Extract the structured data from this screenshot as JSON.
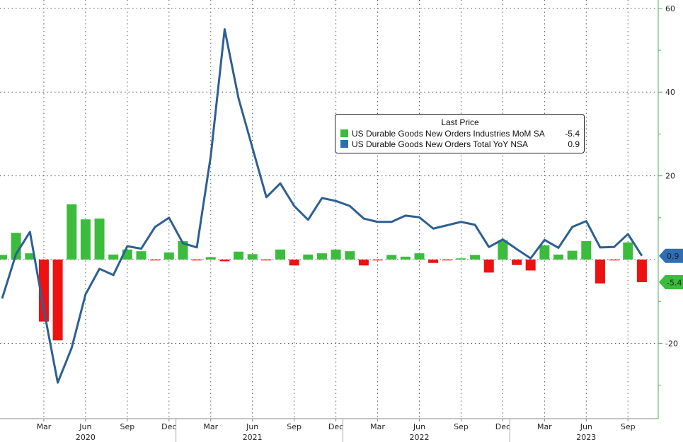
{
  "chart_data": {
    "type": "bar+line",
    "x": [
      "Dec 2019",
      "Jan 2020",
      "Feb 2020",
      "Mar 2020",
      "Apr 2020",
      "May 2020",
      "Jun 2020",
      "Jul 2020",
      "Aug 2020",
      "Sep 2020",
      "Oct 2020",
      "Nov 2020",
      "Dec 2020",
      "Jan 2021",
      "Feb 2021",
      "Mar 2021",
      "Apr 2021",
      "May 2021",
      "Jun 2021",
      "Jul 2021",
      "Aug 2021",
      "Sep 2021",
      "Oct 2021",
      "Nov 2021",
      "Dec 2021",
      "Jan 2022",
      "Feb 2022",
      "Mar 2022",
      "Apr 2022",
      "May 2022",
      "Jun 2022",
      "Jul 2022",
      "Aug 2022",
      "Sep 2022",
      "Oct 2022",
      "Nov 2022",
      "Dec 2022",
      "Jan 2023",
      "Feb 2023",
      "Mar 2023",
      "Apr 2023",
      "May 2023",
      "Jun 2023",
      "Jul 2023",
      "Aug 2023",
      "Sep 2023",
      "Oct 2023"
    ],
    "series": [
      {
        "name": "US Durable Goods New Orders Industries MoM SA",
        "type": "bar",
        "last": "-5.4",
        "values": [
          1.1,
          6.4,
          1.5,
          -14.8,
          -19.3,
          13.2,
          9.6,
          9.8,
          1.2,
          2.4,
          2.0,
          -0.1,
          1.7,
          4.4,
          -0.2,
          0.6,
          -0.4,
          1.9,
          1.3,
          -0.1,
          2.4,
          -1.4,
          1.2,
          1.5,
          2.4,
          2.0,
          -1.4,
          -0.1,
          1.1,
          0.7,
          1.5,
          -0.8,
          -0.1,
          0.3,
          1.1,
          -3.1,
          4.6,
          -1.3,
          -2.6,
          3.4,
          1.2,
          2.1,
          4.4,
          -5.7,
          -0.1,
          4.1,
          -5.4
        ]
      },
      {
        "name": "US Durable Goods New Orders Total YoY NSA",
        "type": "line",
        "last": "0.9",
        "values": [
          -9.3,
          1.3,
          6.6,
          -12.0,
          -29.4,
          -21.1,
          -8.3,
          -2.2,
          -3.7,
          3.2,
          2.6,
          7.8,
          10.0,
          3.9,
          2.9,
          24.7,
          55.0,
          38.5,
          26.7,
          14.9,
          18.2,
          12.8,
          9.5,
          14.7,
          14.0,
          12.8,
          9.8,
          9.0,
          9.0,
          10.5,
          10.1,
          7.4,
          8.2,
          9.0,
          8.3,
          3.0,
          4.8,
          2.5,
          0.3,
          4.7,
          2.8,
          7.8,
          9.2,
          2.9,
          3.0,
          6.1,
          0.9
        ]
      }
    ],
    "colors": {
      "positive": "#3cbc3c",
      "negative": "#ee1111",
      "line": "#2d5f93",
      "axis": "#4caf50",
      "tag_line": "#2f6db5",
      "tag_bar": "#3cbc3c"
    },
    "ylim": [
      -38,
      62
    ],
    "yticks": [
      "60",
      "40",
      "20",
      "-20"
    ],
    "xticks": [
      {
        "label": "Mar",
        "idx": 3
      },
      {
        "label": "Jun",
        "idx": 6
      },
      {
        "label": "Sep",
        "idx": 9
      },
      {
        "label": "Dec",
        "idx": 12
      },
      {
        "label": "Mar",
        "idx": 15
      },
      {
        "label": "Jun",
        "idx": 18
      },
      {
        "label": "Sep",
        "idx": 21
      },
      {
        "label": "Dec",
        "idx": 24
      },
      {
        "label": "Mar",
        "idx": 27
      },
      {
        "label": "Jun",
        "idx": 30
      },
      {
        "label": "Sep",
        "idx": 33
      },
      {
        "label": "Dec",
        "idx": 36
      },
      {
        "label": "Mar",
        "idx": 39
      },
      {
        "label": "Jun",
        "idx": 42
      },
      {
        "label": "Sep",
        "idx": 45
      }
    ],
    "years": [
      {
        "label": "2020",
        "idx": 6
      },
      {
        "label": "2021",
        "idx": 18
      },
      {
        "label": "2022",
        "idx": 30
      },
      {
        "label": "2023",
        "idx": 42
      }
    ],
    "year_breaks": [
      12.5,
      24.5,
      36.5
    ],
    "legend": {
      "title": "Last Price",
      "placement": "center-right"
    },
    "grid": true
  }
}
